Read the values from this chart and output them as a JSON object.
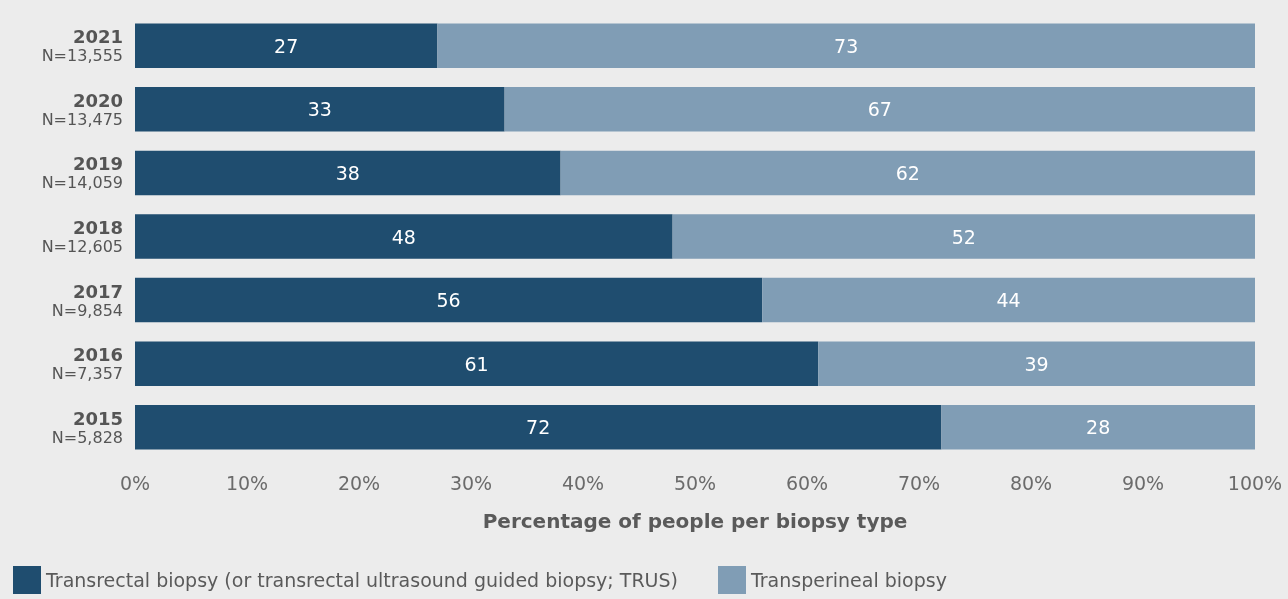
{
  "chart_data": {
    "type": "bar",
    "orientation": "horizontal",
    "stacked": true,
    "data_labels": true,
    "legend": "bottom left",
    "xlabel": "Percentage of people per biopsy type",
    "categories": [
      "2021\nN=13,555",
      "2020\nN=13,475",
      "2019\nN=14,059",
      "2018\nN=12,605",
      "2017\nN=9,854",
      "2016\nN=7,357",
      "2015\nN=5,828"
    ],
    "series": [
      {
        "name": "Transrectal biopsy (or transrectal ultrasound guided biopsy; TRUS)",
        "color": "#1f4d6f",
        "values": [
          27,
          33,
          38,
          48,
          56,
          61,
          72
        ]
      },
      {
        "name": "Transperineal biopsy",
        "color": "#809db5",
        "values": [
          73,
          67,
          62,
          52,
          44,
          39,
          28
        ]
      }
    ],
    "xlim": [
      0,
      100
    ],
    "xticks": [
      {
        "value": 0,
        "label": "0%"
      },
      {
        "value": 10,
        "label": "10%"
      },
      {
        "value": 20,
        "label": "20%"
      },
      {
        "value": 30,
        "label": "30%"
      },
      {
        "value": 40,
        "label": "40%"
      },
      {
        "value": 50,
        "label": "50%"
      },
      {
        "value": 60,
        "label": "60%"
      },
      {
        "value": 70,
        "label": "70%"
      },
      {
        "value": 80,
        "label": "80%"
      },
      {
        "value": 90,
        "label": "90%"
      },
      {
        "value": 100,
        "label": "100%"
      }
    ]
  }
}
